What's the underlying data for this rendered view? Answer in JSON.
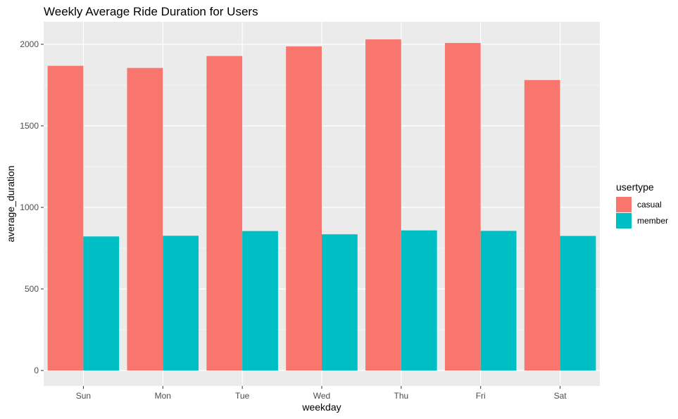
{
  "chart_data": {
    "type": "bar",
    "title": "Weekly Average Ride Duration for Users",
    "xlabel": "weekday",
    "ylabel": "average_duration",
    "categories": [
      "Sun",
      "Mon",
      "Tue",
      "Wed",
      "Thu",
      "Fri",
      "Sat"
    ],
    "series": [
      {
        "name": "casual",
        "color": "#F8766D",
        "values": [
          1868,
          1855,
          1928,
          1987,
          2030,
          2008,
          1781
        ]
      },
      {
        "name": "member",
        "color": "#00BFC4",
        "values": [
          822,
          826,
          855,
          835,
          859,
          856,
          825
        ]
      }
    ],
    "ylim": [
      0,
      2130
    ],
    "yticks": [
      0,
      500,
      1000,
      1500,
      2000
    ],
    "legend": {
      "title": "usertype",
      "placement": "right"
    },
    "grid": true,
    "panel_background": "#EBEBEB",
    "grid_color": "#FFFFFF"
  }
}
